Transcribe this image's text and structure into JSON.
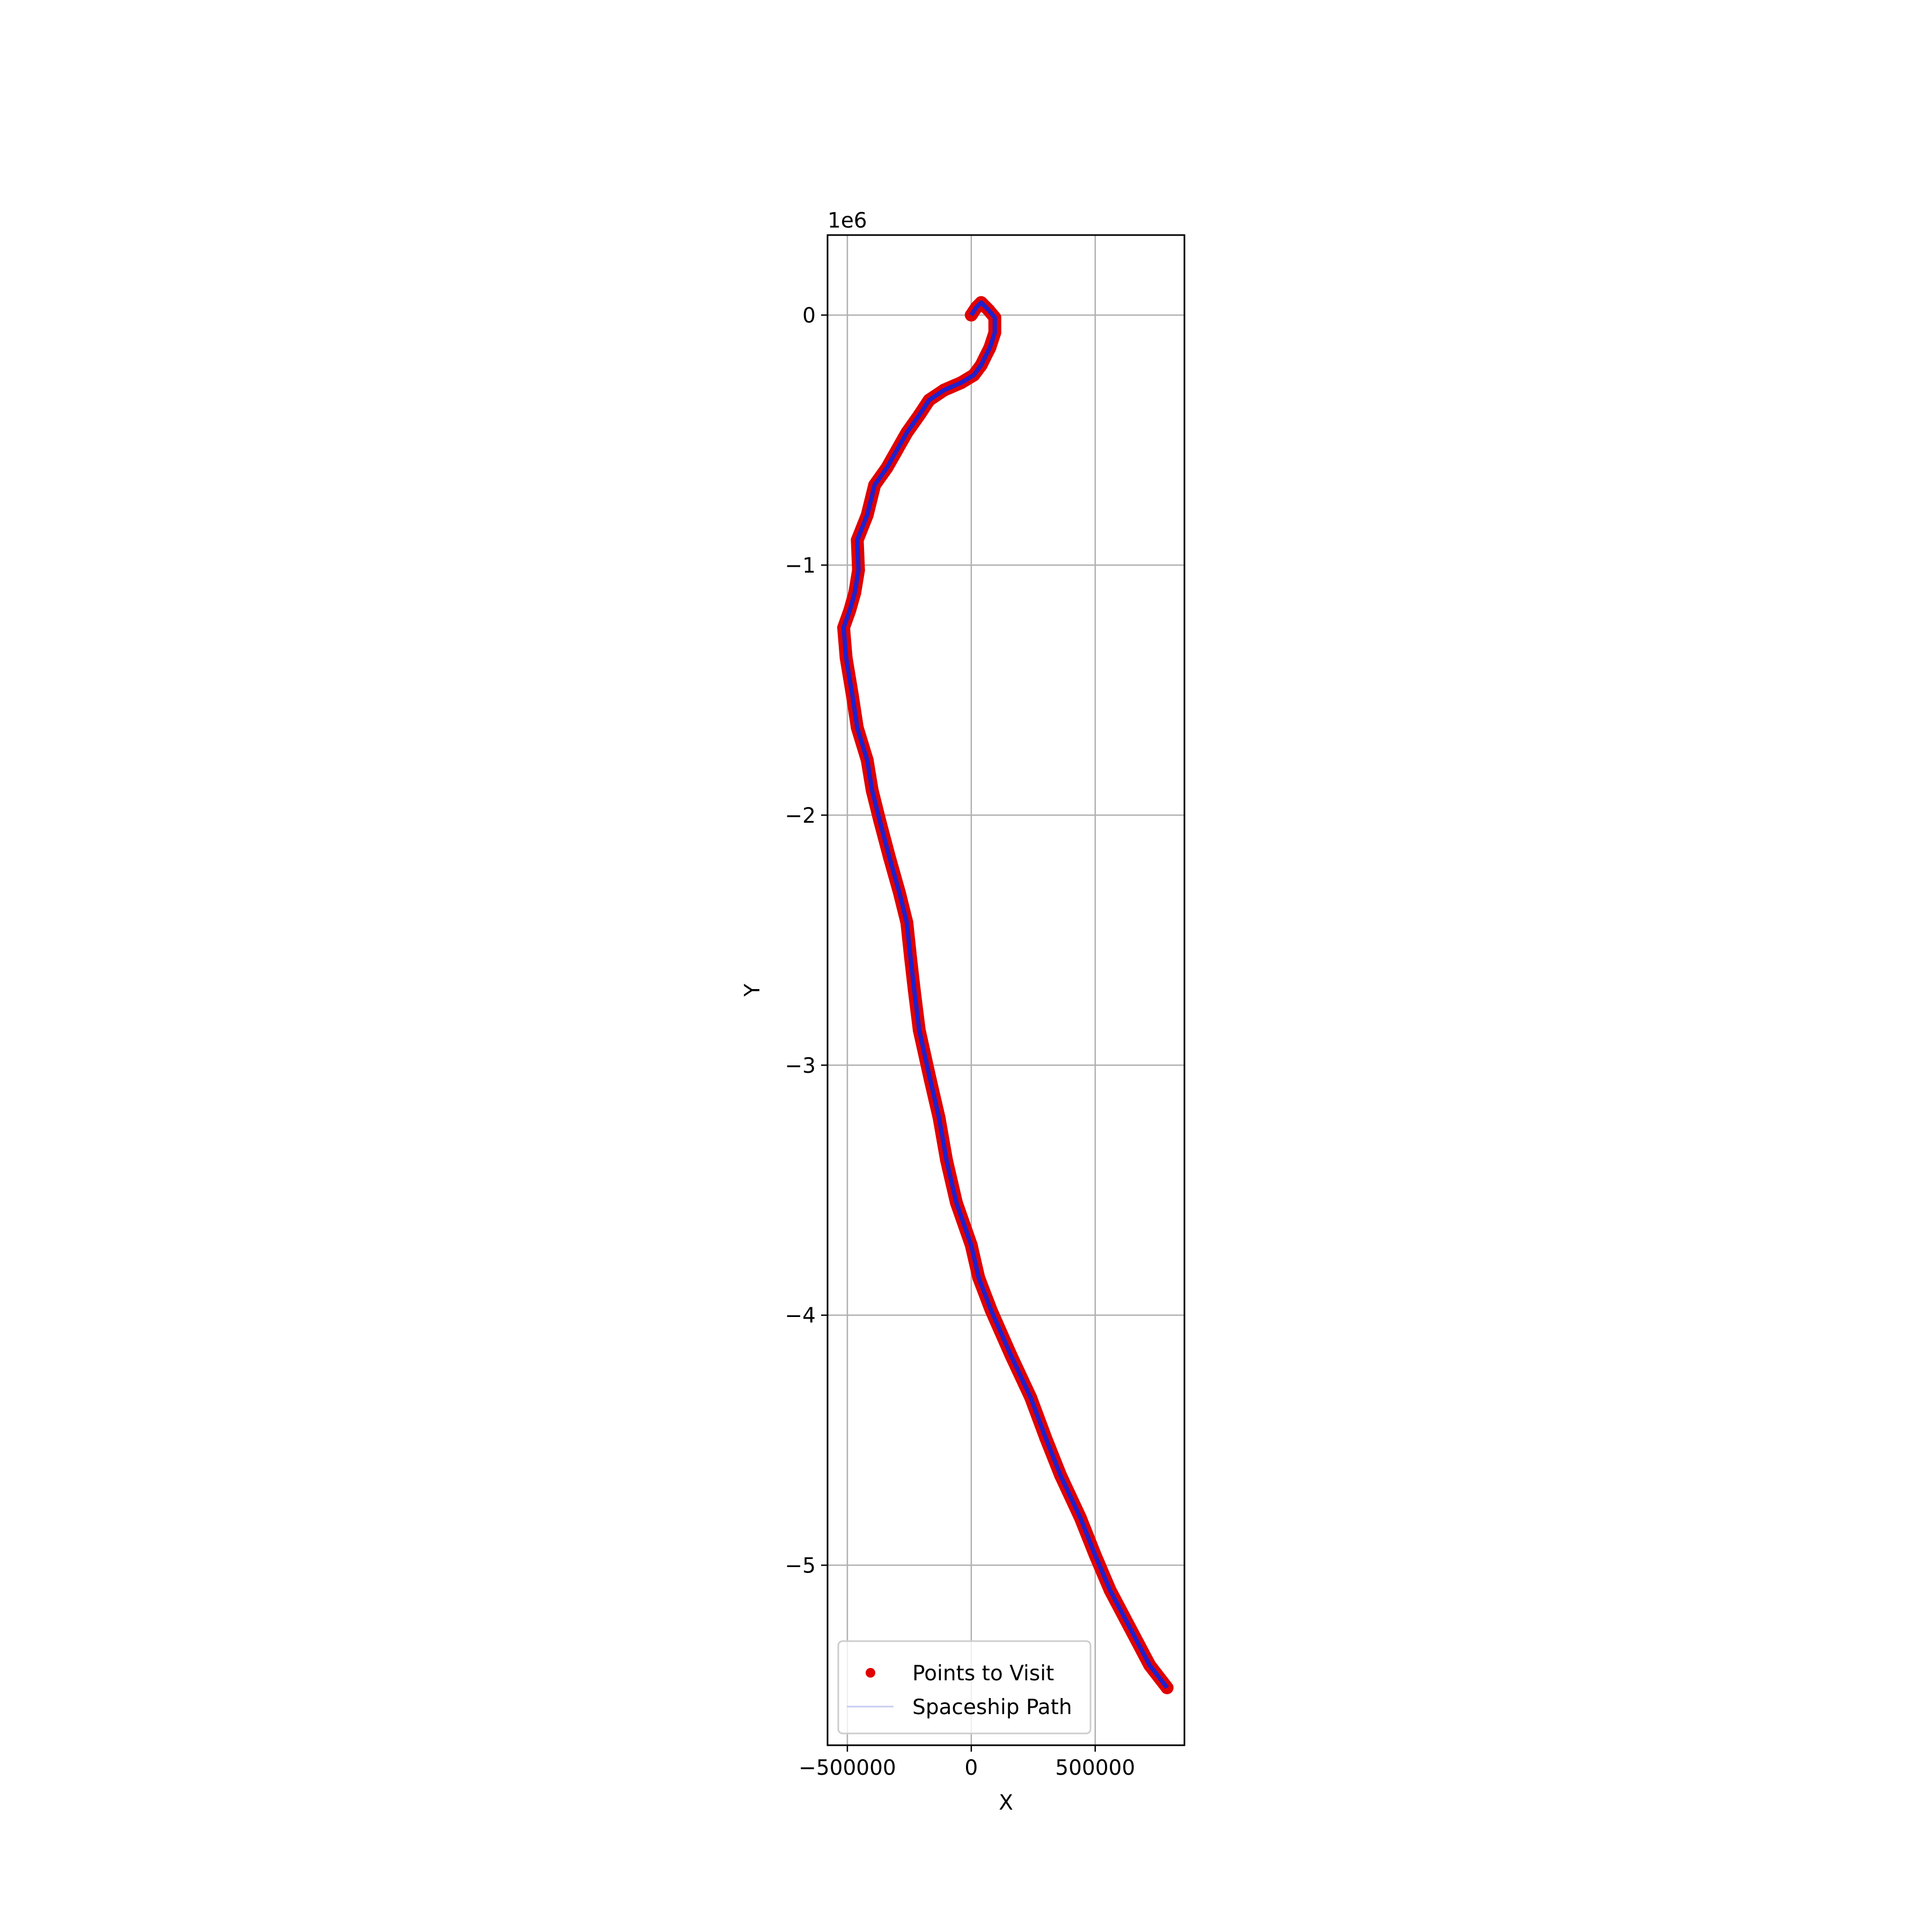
{
  "chart_data": {
    "type": "scatter",
    "title": "",
    "xlabel": "X",
    "ylabel": "Y",
    "xlim": [
      -580000,
      860000
    ],
    "ylim": [
      -5720000,
      320000
    ],
    "y_offset_label": "1e6",
    "y_scale": 1000000,
    "xticks": [
      {
        "value": -500000,
        "label": "−500000"
      },
      {
        "value": 0,
        "label": "0"
      },
      {
        "value": 500000,
        "label": "500000"
      }
    ],
    "yticks": [
      {
        "value": 0,
        "label": "0"
      },
      {
        "value": -1000000,
        "label": "−1"
      },
      {
        "value": -2000000,
        "label": "−2"
      },
      {
        "value": -3000000,
        "label": "−3"
      },
      {
        "value": -4000000,
        "label": "−4"
      },
      {
        "value": -5000000,
        "label": "−5"
      }
    ],
    "grid": true,
    "legend": {
      "position": "lower-left",
      "entries": [
        "Points to Visit",
        "Spaceship Path"
      ]
    },
    "series": [
      {
        "name": "Points to Visit",
        "kind": "scatter",
        "color": "#e00000",
        "x": [
          0,
          20000,
          40000,
          70000,
          95000,
          95000,
          75000,
          55000,
          40000,
          10000,
          -40000,
          -110000,
          -170000,
          -210000,
          -260000,
          -300000,
          -340000,
          -390000,
          -420000,
          -460000,
          -455000,
          -470000,
          -490000,
          -515000,
          -505000,
          -480000,
          -460000,
          -420000,
          -400000,
          -370000,
          -330000,
          -290000,
          -260000,
          -245000,
          -230000,
          -210000,
          -165000,
          -130000,
          -100000,
          -60000,
          0,
          30000,
          80000,
          160000,
          240000,
          300000,
          360000,
          440000,
          500000,
          560000,
          640000,
          720000,
          790000
        ],
        "y": [
          0,
          30000,
          50000,
          20000,
          -10000,
          -70000,
          -130000,
          -170000,
          -200000,
          -240000,
          -270000,
          -300000,
          -340000,
          -400000,
          -470000,
          -540000,
          -610000,
          -680000,
          -800000,
          -900000,
          -1020000,
          -1110000,
          -1180000,
          -1250000,
          -1370000,
          -1520000,
          -1650000,
          -1780000,
          -1900000,
          -2020000,
          -2170000,
          -2310000,
          -2430000,
          -2570000,
          -2700000,
          -2860000,
          -3060000,
          -3210000,
          -3380000,
          -3550000,
          -3720000,
          -3850000,
          -3980000,
          -4160000,
          -4330000,
          -4490000,
          -4640000,
          -4810000,
          -4960000,
          -5100000,
          -5250000,
          -5400000,
          -5490000
        ]
      },
      {
        "name": "Spaceship Path",
        "kind": "line",
        "color": "#2020cc",
        "x": [
          0,
          20000,
          40000,
          70000,
          95000,
          95000,
          75000,
          55000,
          40000,
          10000,
          -40000,
          -110000,
          -170000,
          -210000,
          -260000,
          -300000,
          -340000,
          -390000,
          -420000,
          -460000,
          -455000,
          -470000,
          -490000,
          -515000,
          -505000,
          -480000,
          -460000,
          -420000,
          -400000,
          -370000,
          -330000,
          -290000,
          -260000,
          -245000,
          -230000,
          -210000,
          -165000,
          -130000,
          -100000,
          -60000,
          0,
          30000,
          80000,
          160000,
          240000,
          300000,
          360000,
          440000,
          500000,
          560000,
          640000,
          720000,
          790000
        ],
        "y": [
          0,
          30000,
          50000,
          20000,
          -10000,
          -70000,
          -130000,
          -170000,
          -200000,
          -240000,
          -270000,
          -300000,
          -340000,
          -400000,
          -470000,
          -540000,
          -610000,
          -680000,
          -800000,
          -900000,
          -1020000,
          -1110000,
          -1180000,
          -1250000,
          -1370000,
          -1520000,
          -1650000,
          -1780000,
          -1900000,
          -2020000,
          -2170000,
          -2310000,
          -2430000,
          -2570000,
          -2700000,
          -2860000,
          -3060000,
          -3210000,
          -3380000,
          -3550000,
          -3720000,
          -3850000,
          -3980000,
          -4160000,
          -4330000,
          -4490000,
          -4640000,
          -4810000,
          -4960000,
          -5100000,
          -5250000,
          -5400000,
          -5490000
        ]
      }
    ]
  }
}
